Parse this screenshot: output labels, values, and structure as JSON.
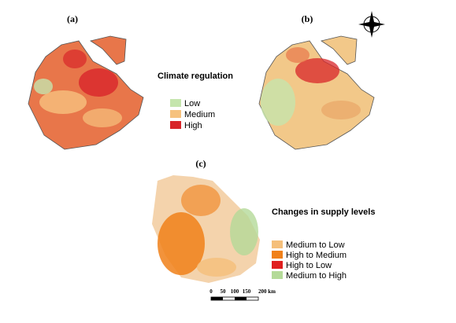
{
  "panels": {
    "a": "(a)",
    "b": "(b)",
    "c": "(c)"
  },
  "climate_legend": {
    "title": "Climate regulation",
    "items": [
      {
        "label": "Low",
        "color": "#c5e5ad"
      },
      {
        "label": "Medium",
        "color": "#f6c27e"
      },
      {
        "label": "High",
        "color": "#d8262a"
      }
    ]
  },
  "change_legend": {
    "title": "Changes in supply levels",
    "items": [
      {
        "label": "Medium to Low",
        "color": "#f5bf7a"
      },
      {
        "label": "High to Medium",
        "color": "#f08019"
      },
      {
        "label": "High to Low",
        "color": "#e01f1f"
      },
      {
        "label": "Medium to High",
        "color": "#b4da98"
      }
    ]
  },
  "scale_bar": {
    "labels": [
      "0",
      "50",
      "100",
      "150",
      "200 km"
    ]
  }
}
